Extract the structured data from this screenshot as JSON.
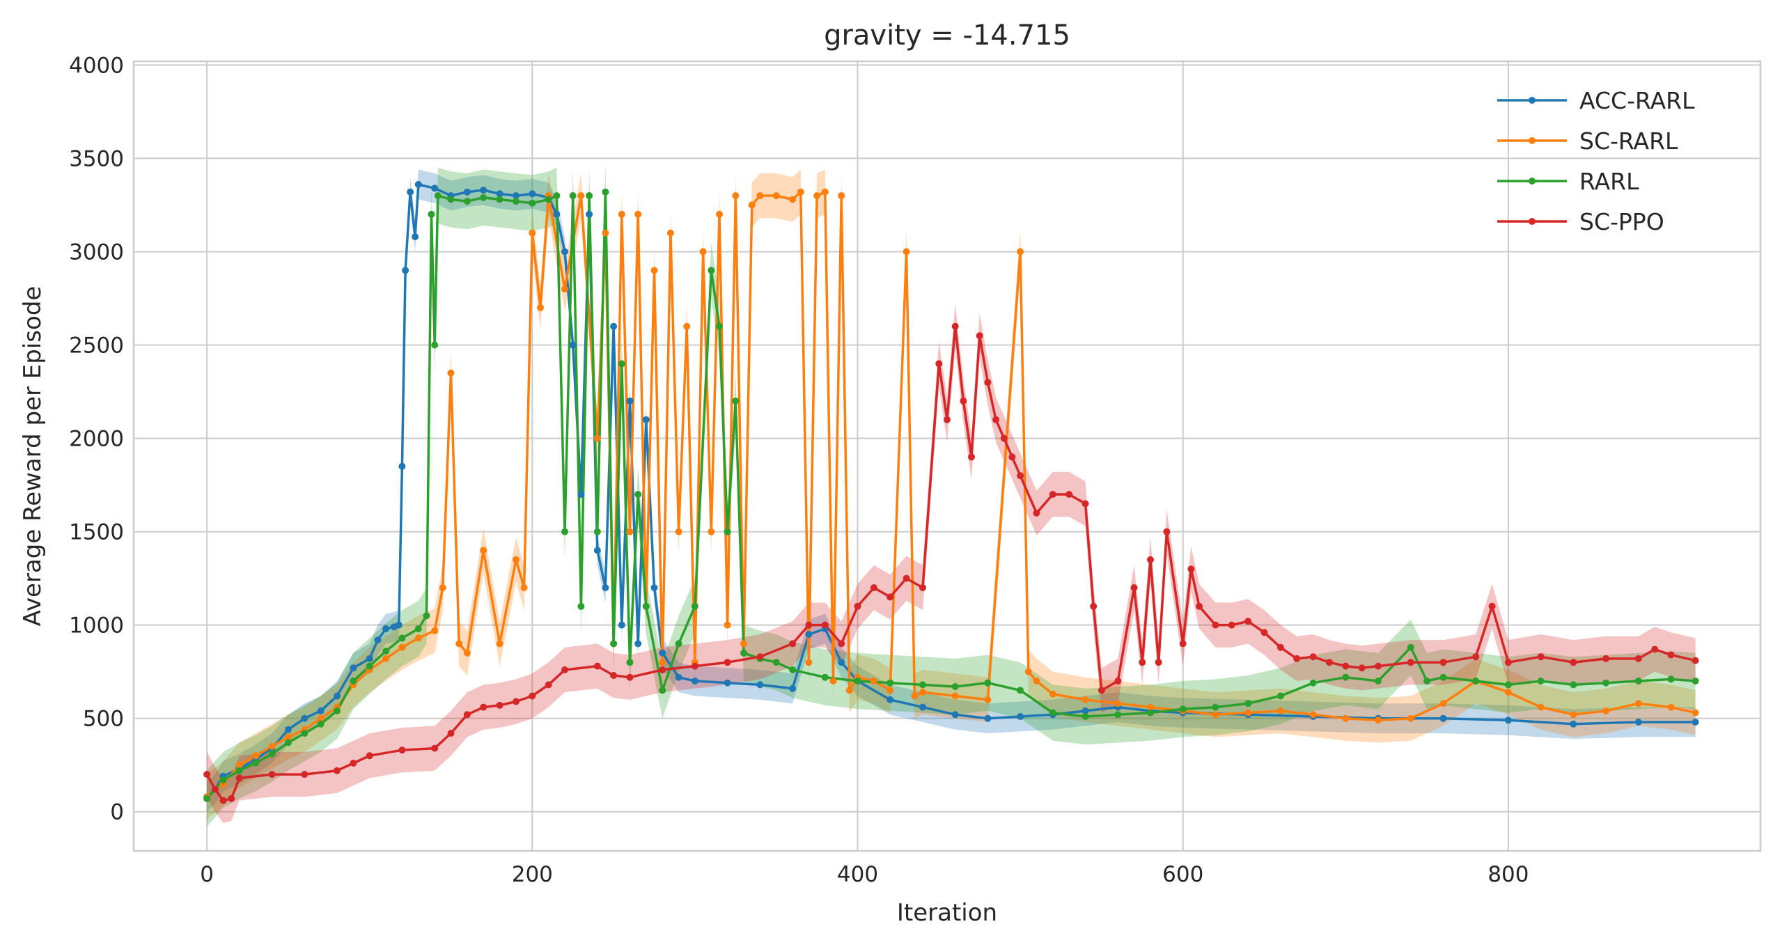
{
  "chart_data": {
    "type": "line",
    "title": "gravity = -14.715",
    "xlabel": "Iteration",
    "ylabel": "Average Reward per Episode",
    "xlim": [
      -45,
      955
    ],
    "ylim": [
      -210,
      4020
    ],
    "xticks": [
      0,
      200,
      400,
      600,
      800
    ],
    "yticks": [
      0,
      500,
      1000,
      1500,
      2000,
      2500,
      3000,
      3500,
      4000
    ],
    "grid": true,
    "legend_position": "top-right",
    "series": [
      {
        "name": "ACC-RARL",
        "color": "#1f77b4",
        "band": 80,
        "points": [
          [
            0,
            80
          ],
          [
            5,
            120
          ],
          [
            10,
            190
          ],
          [
            20,
            230
          ],
          [
            30,
            280
          ],
          [
            40,
            340
          ],
          [
            50,
            440
          ],
          [
            60,
            500
          ],
          [
            70,
            540
          ],
          [
            80,
            620
          ],
          [
            90,
            770
          ],
          [
            100,
            820
          ],
          [
            105,
            920
          ],
          [
            110,
            980
          ],
          [
            115,
            990
          ],
          [
            118,
            1000
          ],
          [
            120,
            1850
          ],
          [
            122,
            2900
          ],
          [
            125,
            3320
          ],
          [
            128,
            3080
          ],
          [
            130,
            3360
          ],
          [
            140,
            3340
          ],
          [
            150,
            3300
          ],
          [
            160,
            3320
          ],
          [
            170,
            3330
          ],
          [
            180,
            3310
          ],
          [
            190,
            3300
          ],
          [
            200,
            3310
          ],
          [
            210,
            3290
          ],
          [
            215,
            3200
          ],
          [
            220,
            3000
          ],
          [
            225,
            2500
          ],
          [
            230,
            1700
          ],
          [
            235,
            3200
          ],
          [
            240,
            1400
          ],
          [
            245,
            1200
          ],
          [
            250,
            2600
          ],
          [
            255,
            1000
          ],
          [
            260,
            2200
          ],
          [
            265,
            900
          ],
          [
            270,
            2100
          ],
          [
            275,
            1200
          ],
          [
            280,
            850
          ],
          [
            290,
            720
          ],
          [
            300,
            700
          ],
          [
            320,
            690
          ],
          [
            340,
            680
          ],
          [
            360,
            660
          ],
          [
            370,
            950
          ],
          [
            380,
            980
          ],
          [
            390,
            800
          ],
          [
            400,
            700
          ],
          [
            420,
            600
          ],
          [
            440,
            560
          ],
          [
            460,
            520
          ],
          [
            480,
            500
          ],
          [
            500,
            510
          ],
          [
            520,
            520
          ],
          [
            540,
            540
          ],
          [
            560,
            560
          ],
          [
            580,
            540
          ],
          [
            600,
            530
          ],
          [
            640,
            520
          ],
          [
            680,
            510
          ],
          [
            720,
            500
          ],
          [
            760,
            500
          ],
          [
            800,
            490
          ],
          [
            840,
            470
          ],
          [
            880,
            480
          ],
          [
            915,
            480
          ]
        ]
      },
      {
        "name": "SC-RARL",
        "color": "#ff7f0e",
        "band": 120,
        "points": [
          [
            0,
            80
          ],
          [
            10,
            150
          ],
          [
            20,
            250
          ],
          [
            30,
            300
          ],
          [
            40,
            350
          ],
          [
            50,
            400
          ],
          [
            60,
            440
          ],
          [
            70,
            500
          ],
          [
            80,
            560
          ],
          [
            90,
            680
          ],
          [
            100,
            760
          ],
          [
            110,
            820
          ],
          [
            120,
            880
          ],
          [
            130,
            930
          ],
          [
            140,
            970
          ],
          [
            145,
            1200
          ],
          [
            150,
            2350
          ],
          [
            155,
            900
          ],
          [
            160,
            850
          ],
          [
            170,
            1400
          ],
          [
            180,
            900
          ],
          [
            190,
            1350
          ],
          [
            195,
            1200
          ],
          [
            200,
            3100
          ],
          [
            205,
            2700
          ],
          [
            210,
            3300
          ],
          [
            220,
            2800
          ],
          [
            230,
            3300
          ],
          [
            240,
            2000
          ],
          [
            245,
            3100
          ],
          [
            250,
            900
          ],
          [
            255,
            3200
          ],
          [
            260,
            1500
          ],
          [
            265,
            3200
          ],
          [
            270,
            1100
          ],
          [
            275,
            2900
          ],
          [
            280,
            800
          ],
          [
            285,
            3100
          ],
          [
            290,
            1500
          ],
          [
            295,
            2600
          ],
          [
            300,
            800
          ],
          [
            305,
            3000
          ],
          [
            310,
            1500
          ],
          [
            315,
            3200
          ],
          [
            320,
            1000
          ],
          [
            325,
            3300
          ],
          [
            330,
            900
          ],
          [
            335,
            3250
          ],
          [
            340,
            3300
          ],
          [
            350,
            3300
          ],
          [
            360,
            3280
          ],
          [
            365,
            3320
          ],
          [
            370,
            800
          ],
          [
            375,
            3300
          ],
          [
            380,
            3320
          ],
          [
            385,
            700
          ],
          [
            390,
            3300
          ],
          [
            395,
            650
          ],
          [
            400,
            720
          ],
          [
            410,
            700
          ],
          [
            420,
            650
          ],
          [
            430,
            3000
          ],
          [
            435,
            620
          ],
          [
            440,
            640
          ],
          [
            460,
            620
          ],
          [
            480,
            600
          ],
          [
            500,
            3000
          ],
          [
            505,
            750
          ],
          [
            510,
            700
          ],
          [
            520,
            630
          ],
          [
            540,
            600
          ],
          [
            560,
            580
          ],
          [
            580,
            560
          ],
          [
            600,
            540
          ],
          [
            620,
            520
          ],
          [
            640,
            530
          ],
          [
            660,
            540
          ],
          [
            680,
            520
          ],
          [
            700,
            500
          ],
          [
            720,
            490
          ],
          [
            740,
            500
          ],
          [
            760,
            580
          ],
          [
            780,
            700
          ],
          [
            800,
            640
          ],
          [
            820,
            560
          ],
          [
            840,
            520
          ],
          [
            860,
            540
          ],
          [
            880,
            580
          ],
          [
            900,
            560
          ],
          [
            915,
            530
          ]
        ]
      },
      {
        "name": "RARL",
        "color": "#2ca02c",
        "band": 150,
        "points": [
          [
            0,
            70
          ],
          [
            10,
            170
          ],
          [
            20,
            220
          ],
          [
            30,
            260
          ],
          [
            40,
            310
          ],
          [
            50,
            370
          ],
          [
            60,
            420
          ],
          [
            70,
            470
          ],
          [
            80,
            540
          ],
          [
            90,
            700
          ],
          [
            100,
            780
          ],
          [
            110,
            860
          ],
          [
            120,
            930
          ],
          [
            130,
            980
          ],
          [
            135,
            1050
          ],
          [
            138,
            3200
          ],
          [
            140,
            2500
          ],
          [
            142,
            3300
          ],
          [
            150,
            3280
          ],
          [
            160,
            3270
          ],
          [
            170,
            3290
          ],
          [
            180,
            3280
          ],
          [
            190,
            3270
          ],
          [
            200,
            3260
          ],
          [
            210,
            3280
          ],
          [
            215,
            3300
          ],
          [
            220,
            1500
          ],
          [
            225,
            3300
          ],
          [
            230,
            1100
          ],
          [
            235,
            3300
          ],
          [
            240,
            1500
          ],
          [
            245,
            3320
          ],
          [
            250,
            900
          ],
          [
            255,
            2400
          ],
          [
            260,
            800
          ],
          [
            265,
            1700
          ],
          [
            270,
            1100
          ],
          [
            280,
            650
          ],
          [
            290,
            900
          ],
          [
            300,
            1100
          ],
          [
            310,
            2900
          ],
          [
            315,
            2600
          ],
          [
            320,
            1500
          ],
          [
            325,
            2200
          ],
          [
            330,
            850
          ],
          [
            340,
            820
          ],
          [
            350,
            800
          ],
          [
            360,
            760
          ],
          [
            380,
            720
          ],
          [
            400,
            700
          ],
          [
            420,
            690
          ],
          [
            440,
            680
          ],
          [
            460,
            670
          ],
          [
            480,
            690
          ],
          [
            500,
            650
          ],
          [
            520,
            530
          ],
          [
            540,
            510
          ],
          [
            560,
            520
          ],
          [
            580,
            530
          ],
          [
            600,
            550
          ],
          [
            620,
            560
          ],
          [
            640,
            580
          ],
          [
            660,
            620
          ],
          [
            680,
            690
          ],
          [
            700,
            720
          ],
          [
            720,
            700
          ],
          [
            740,
            880
          ],
          [
            750,
            700
          ],
          [
            760,
            720
          ],
          [
            780,
            700
          ],
          [
            800,
            680
          ],
          [
            820,
            700
          ],
          [
            840,
            680
          ],
          [
            860,
            690
          ],
          [
            880,
            700
          ],
          [
            900,
            710
          ],
          [
            915,
            700
          ]
        ]
      },
      {
        "name": "SC-PPO",
        "color": "#d62728",
        "band": 120,
        "points": [
          [
            0,
            200
          ],
          [
            5,
            120
          ],
          [
            10,
            60
          ],
          [
            15,
            70
          ],
          [
            20,
            180
          ],
          [
            40,
            200
          ],
          [
            60,
            200
          ],
          [
            80,
            220
          ],
          [
            90,
            260
          ],
          [
            100,
            300
          ],
          [
            120,
            330
          ],
          [
            140,
            340
          ],
          [
            150,
            420
          ],
          [
            160,
            520
          ],
          [
            170,
            560
          ],
          [
            180,
            570
          ],
          [
            190,
            590
          ],
          [
            200,
            620
          ],
          [
            210,
            680
          ],
          [
            220,
            760
          ],
          [
            240,
            780
          ],
          [
            250,
            730
          ],
          [
            260,
            720
          ],
          [
            280,
            760
          ],
          [
            300,
            780
          ],
          [
            320,
            800
          ],
          [
            340,
            830
          ],
          [
            360,
            900
          ],
          [
            370,
            1000
          ],
          [
            380,
            1000
          ],
          [
            390,
            900
          ],
          [
            400,
            1100
          ],
          [
            410,
            1200
          ],
          [
            420,
            1150
          ],
          [
            430,
            1250
          ],
          [
            440,
            1200
          ],
          [
            450,
            2400
          ],
          [
            455,
            2100
          ],
          [
            460,
            2600
          ],
          [
            465,
            2200
          ],
          [
            470,
            1900
          ],
          [
            475,
            2550
          ],
          [
            480,
            2300
          ],
          [
            485,
            2100
          ],
          [
            490,
            2000
          ],
          [
            495,
            1900
          ],
          [
            500,
            1800
          ],
          [
            510,
            1600
          ],
          [
            520,
            1700
          ],
          [
            530,
            1700
          ],
          [
            540,
            1650
          ],
          [
            545,
            1100
          ],
          [
            550,
            650
          ],
          [
            560,
            700
          ],
          [
            570,
            1200
          ],
          [
            575,
            800
          ],
          [
            580,
            1350
          ],
          [
            585,
            800
          ],
          [
            590,
            1500
          ],
          [
            600,
            900
          ],
          [
            605,
            1300
          ],
          [
            610,
            1100
          ],
          [
            620,
            1000
          ],
          [
            630,
            1000
          ],
          [
            640,
            1020
          ],
          [
            650,
            960
          ],
          [
            660,
            880
          ],
          [
            670,
            820
          ],
          [
            680,
            830
          ],
          [
            690,
            800
          ],
          [
            700,
            780
          ],
          [
            710,
            770
          ],
          [
            720,
            780
          ],
          [
            740,
            800
          ],
          [
            760,
            800
          ],
          [
            780,
            830
          ],
          [
            790,
            1100
          ],
          [
            800,
            800
          ],
          [
            820,
            830
          ],
          [
            840,
            800
          ],
          [
            860,
            820
          ],
          [
            880,
            820
          ],
          [
            890,
            870
          ],
          [
            900,
            840
          ],
          [
            915,
            810
          ]
        ]
      }
    ]
  }
}
